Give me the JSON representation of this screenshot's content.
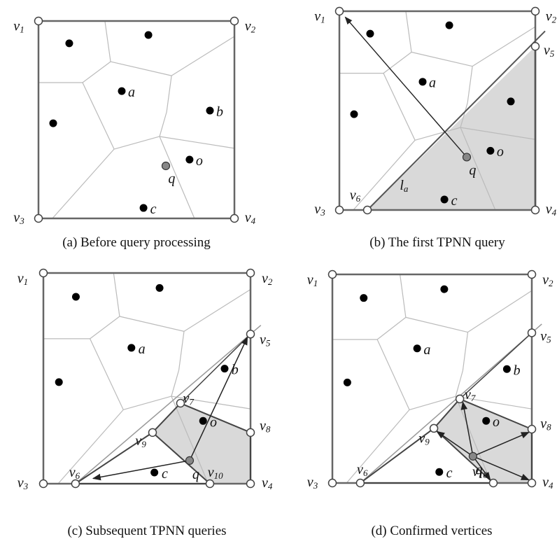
{
  "panels": [
    {
      "caption": "(a) Before query processing",
      "labels": [
        {
          "text": "v",
          "sub": "1"
        },
        {
          "text": "v",
          "sub": "2"
        },
        {
          "text": "v",
          "sub": "3"
        },
        {
          "text": "v",
          "sub": "4"
        },
        {
          "text": "a"
        },
        {
          "text": "b"
        },
        {
          "text": "o"
        },
        {
          "text": "q"
        },
        {
          "text": "c"
        }
      ]
    },
    {
      "caption": "(b) The first TPNN query",
      "labels": [
        {
          "text": "v",
          "sub": "1"
        },
        {
          "text": "v",
          "sub": "2"
        },
        {
          "text": "v",
          "sub": "3"
        },
        {
          "text": "v",
          "sub": "4"
        },
        {
          "text": "v",
          "sub": "5"
        },
        {
          "text": "v",
          "sub": "6"
        },
        {
          "text": "l",
          "sub": "a"
        },
        {
          "text": "a"
        },
        {
          "text": "o"
        },
        {
          "text": "q"
        },
        {
          "text": "c"
        }
      ]
    },
    {
      "caption": "(c) Subsequent TPNN queries",
      "labels": [
        {
          "text": "v",
          "sub": "1"
        },
        {
          "text": "v",
          "sub": "2"
        },
        {
          "text": "v",
          "sub": "3"
        },
        {
          "text": "v",
          "sub": "4"
        },
        {
          "text": "v",
          "sub": "5"
        },
        {
          "text": "v",
          "sub": "6"
        },
        {
          "text": "v",
          "sub": "7"
        },
        {
          "text": "v",
          "sub": "8"
        },
        {
          "text": "v",
          "sub": "9"
        },
        {
          "text": "v",
          "sub": "10"
        },
        {
          "text": "a"
        },
        {
          "text": "b"
        },
        {
          "text": "o"
        },
        {
          "text": "q"
        },
        {
          "text": "c"
        }
      ]
    },
    {
      "caption": "(d) Confirmed vertices",
      "labels": [
        {
          "text": "v",
          "sub": "1"
        },
        {
          "text": "v",
          "sub": "2"
        },
        {
          "text": "v",
          "sub": "3"
        },
        {
          "text": "v",
          "sub": "4"
        },
        {
          "text": "v",
          "sub": "5"
        },
        {
          "text": "v",
          "sub": "6"
        },
        {
          "text": "v",
          "sub": "7"
        },
        {
          "text": "v",
          "sub": "8"
        },
        {
          "text": "v",
          "sub": "9"
        },
        {
          "text": "v",
          "sub": "10"
        },
        {
          "text": "a"
        },
        {
          "text": "b"
        },
        {
          "text": "o"
        },
        {
          "text": "q"
        },
        {
          "text": "c"
        }
      ]
    }
  ]
}
